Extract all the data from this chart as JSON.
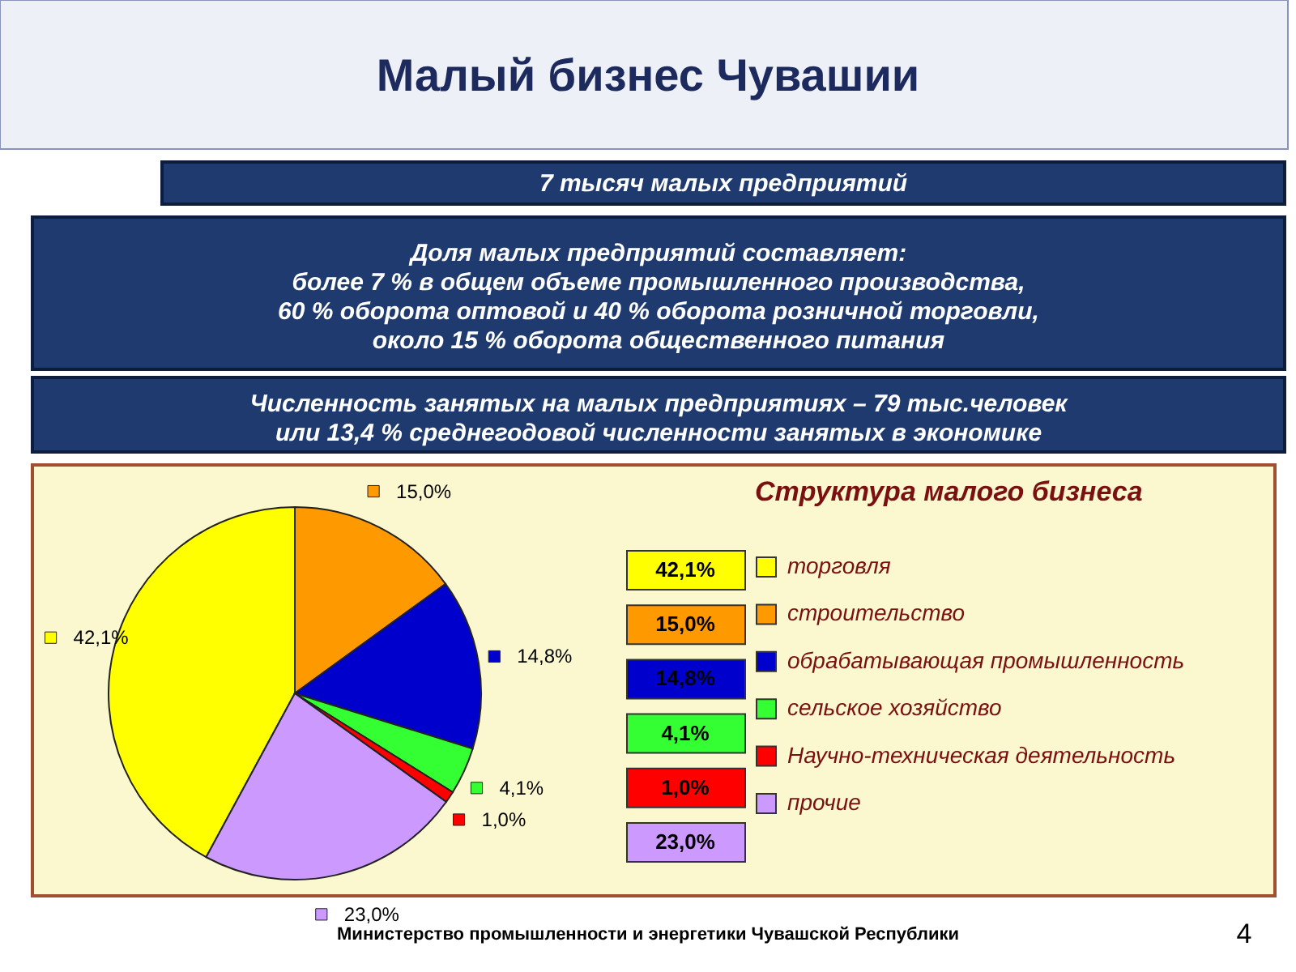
{
  "chart_data": {
    "type": "pie",
    "title": "Малый бизнес Чувашии",
    "legend_title": "Структура малого бизнеса",
    "categories": [
      "торговля",
      "строительство",
      "обрабатывающая промышленность",
      "сельское хозяйство",
      "Научно-техническая деятельность",
      "прочие"
    ],
    "values": [
      42.1,
      15.0,
      14.8,
      4.1,
      1.0,
      23.0
    ],
    "colors": [
      "#ffff00",
      "#ff9900",
      "#0000cc",
      "#33ff33",
      "#ff0000",
      "#cc99ff"
    ],
    "value_labels": [
      "42,1%",
      "15,0%",
      "14,8%",
      "4,1%",
      "1,0%",
      "23,0%"
    ],
    "legend": "right",
    "annotations": [
      "7 тысяч малых предприятий",
      "Доля малых предприятий составляет:\nболее  7 % в общем объеме промышленного производства,\n60 % оборота оптовой  и 40 % оборота розничной торговли,\nоколо  15 % оборота общественного питания",
      "Численность занятых на малых предприятиях – 79 тыс.человек\nили 13,4 % среднегодовой численности занятых в экономике",
      "Министерство промышленности и энергетики Чувашской Республики",
      "4"
    ]
  }
}
